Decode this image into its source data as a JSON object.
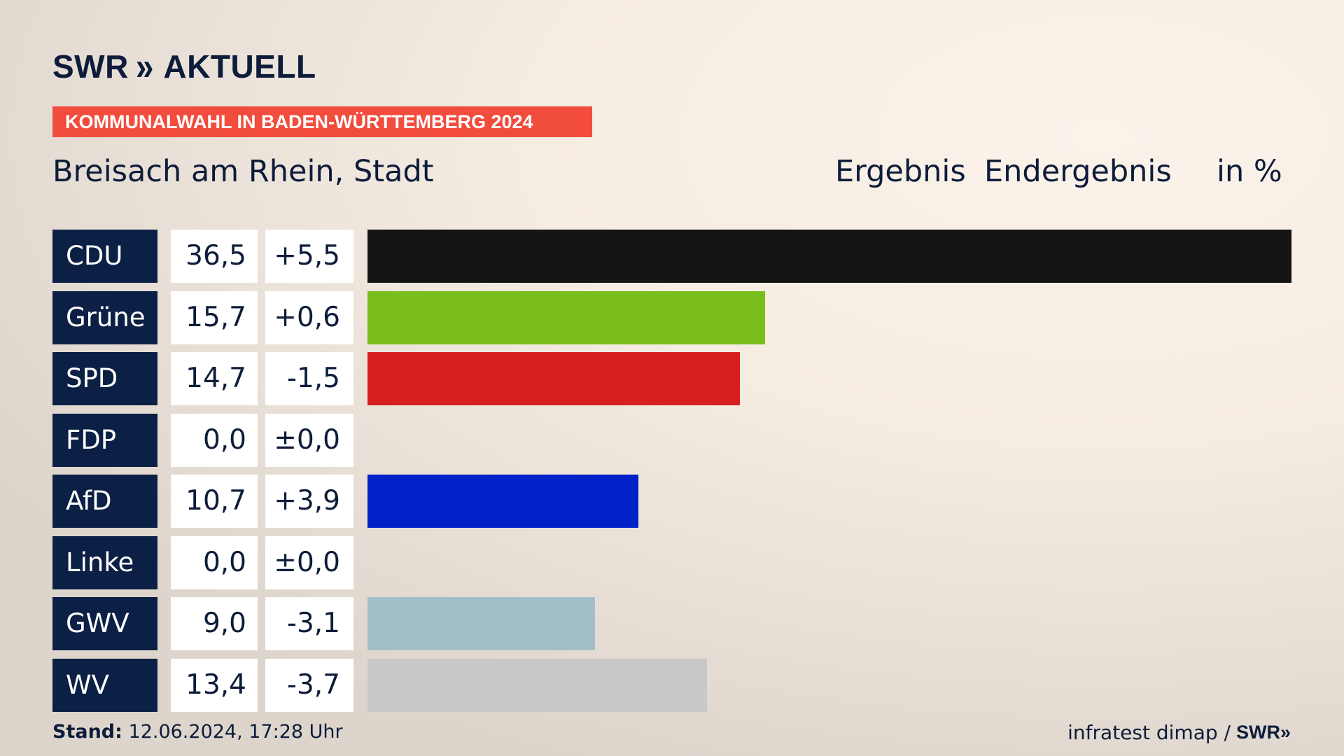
{
  "logo": {
    "brand": "SWR",
    "chevrons": "»",
    "name": "AKTUELL"
  },
  "badge": "KOMMUNALWAHL IN BADEN-WÜRTTEMBERG 2024",
  "place": "Breisach am Rhein, Stadt",
  "header": {
    "result": "Ergebnis",
    "status": "Endergebnis",
    "unit": "in %"
  },
  "chart_data": {
    "type": "bar",
    "orientation": "horizontal",
    "title": "Breisach am Rhein, Stadt",
    "unit": "in %",
    "categories": [
      "CDU",
      "Grüne",
      "SPD",
      "FDP",
      "AfD",
      "Linke",
      "GWV",
      "WV"
    ],
    "values": [
      36.5,
      15.7,
      14.7,
      0.0,
      10.7,
      0.0,
      9.0,
      13.4
    ],
    "value_labels": [
      "36,5",
      "15,7",
      "14,7",
      "0,0",
      "10,7",
      "0,0",
      "9,0",
      "13,4"
    ],
    "diff_labels": [
      "+5,5",
      "+0,6",
      "-1,5",
      "±0,0",
      "+3,9",
      "±0,0",
      "-3,1",
      "-3,7"
    ],
    "colors": [
      "#141414",
      "#79be1d",
      "#d71f20",
      "#f5d800",
      "#0021c7",
      "#b0195f",
      "#a2bfc8",
      "#c8c8c8"
    ],
    "xlim": [
      0,
      36.5
    ]
  },
  "footer": {
    "stand_label": "Stand:",
    "stand_value": "12.06.2024, 17:28 Uhr",
    "source": "infratest dimap /",
    "source_brand": "SWR",
    "source_chevrons": "»"
  }
}
